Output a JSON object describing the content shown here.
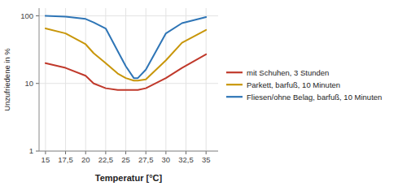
{
  "chart_data": {
    "type": "line",
    "x_label": "Temperatur [°C]",
    "y_label": "Unzufriedene in %",
    "x": [
      15,
      17.5,
      20,
      21,
      22.5,
      24,
      25,
      26,
      26.5,
      27.5,
      30,
      32,
      35
    ],
    "series": [
      {
        "name": "mit Schuhen, 3 Stunden",
        "color": "#c0392b",
        "values": [
          20,
          17,
          13,
          10,
          8.5,
          8,
          8,
          8,
          8,
          8.5,
          12,
          17,
          27
        ]
      },
      {
        "name": "Parkett, barfuß, 10 Minuten",
        "color": "#c8960a",
        "values": [
          65,
          55,
          38,
          28,
          20,
          14,
          12,
          11,
          11,
          11.5,
          22,
          40,
          62
        ]
      },
      {
        "name": "Fliesen/ohne Belag, barfuß, 10 Minuten",
        "color": "#2e75b6",
        "values": [
          100,
          97,
          90,
          80,
          65,
          30,
          18,
          12,
          12,
          16,
          55,
          78,
          96
        ]
      }
    ],
    "xlim": [
      14.2,
      36.5
    ],
    "ylim": [
      1,
      130
    ],
    "xticks": [
      15,
      {
        "value": 17.5,
        "label": "17,5"
      },
      20,
      {
        "value": 22.5,
        "label": "22,5"
      },
      25,
      {
        "value": 27.5,
        "label": "27,5"
      },
      30,
      {
        "value": 32.5,
        "label": "32,5"
      },
      35
    ],
    "yticks": [
      1,
      10,
      100
    ],
    "log": "y",
    "grid": true,
    "legend": "right"
  }
}
